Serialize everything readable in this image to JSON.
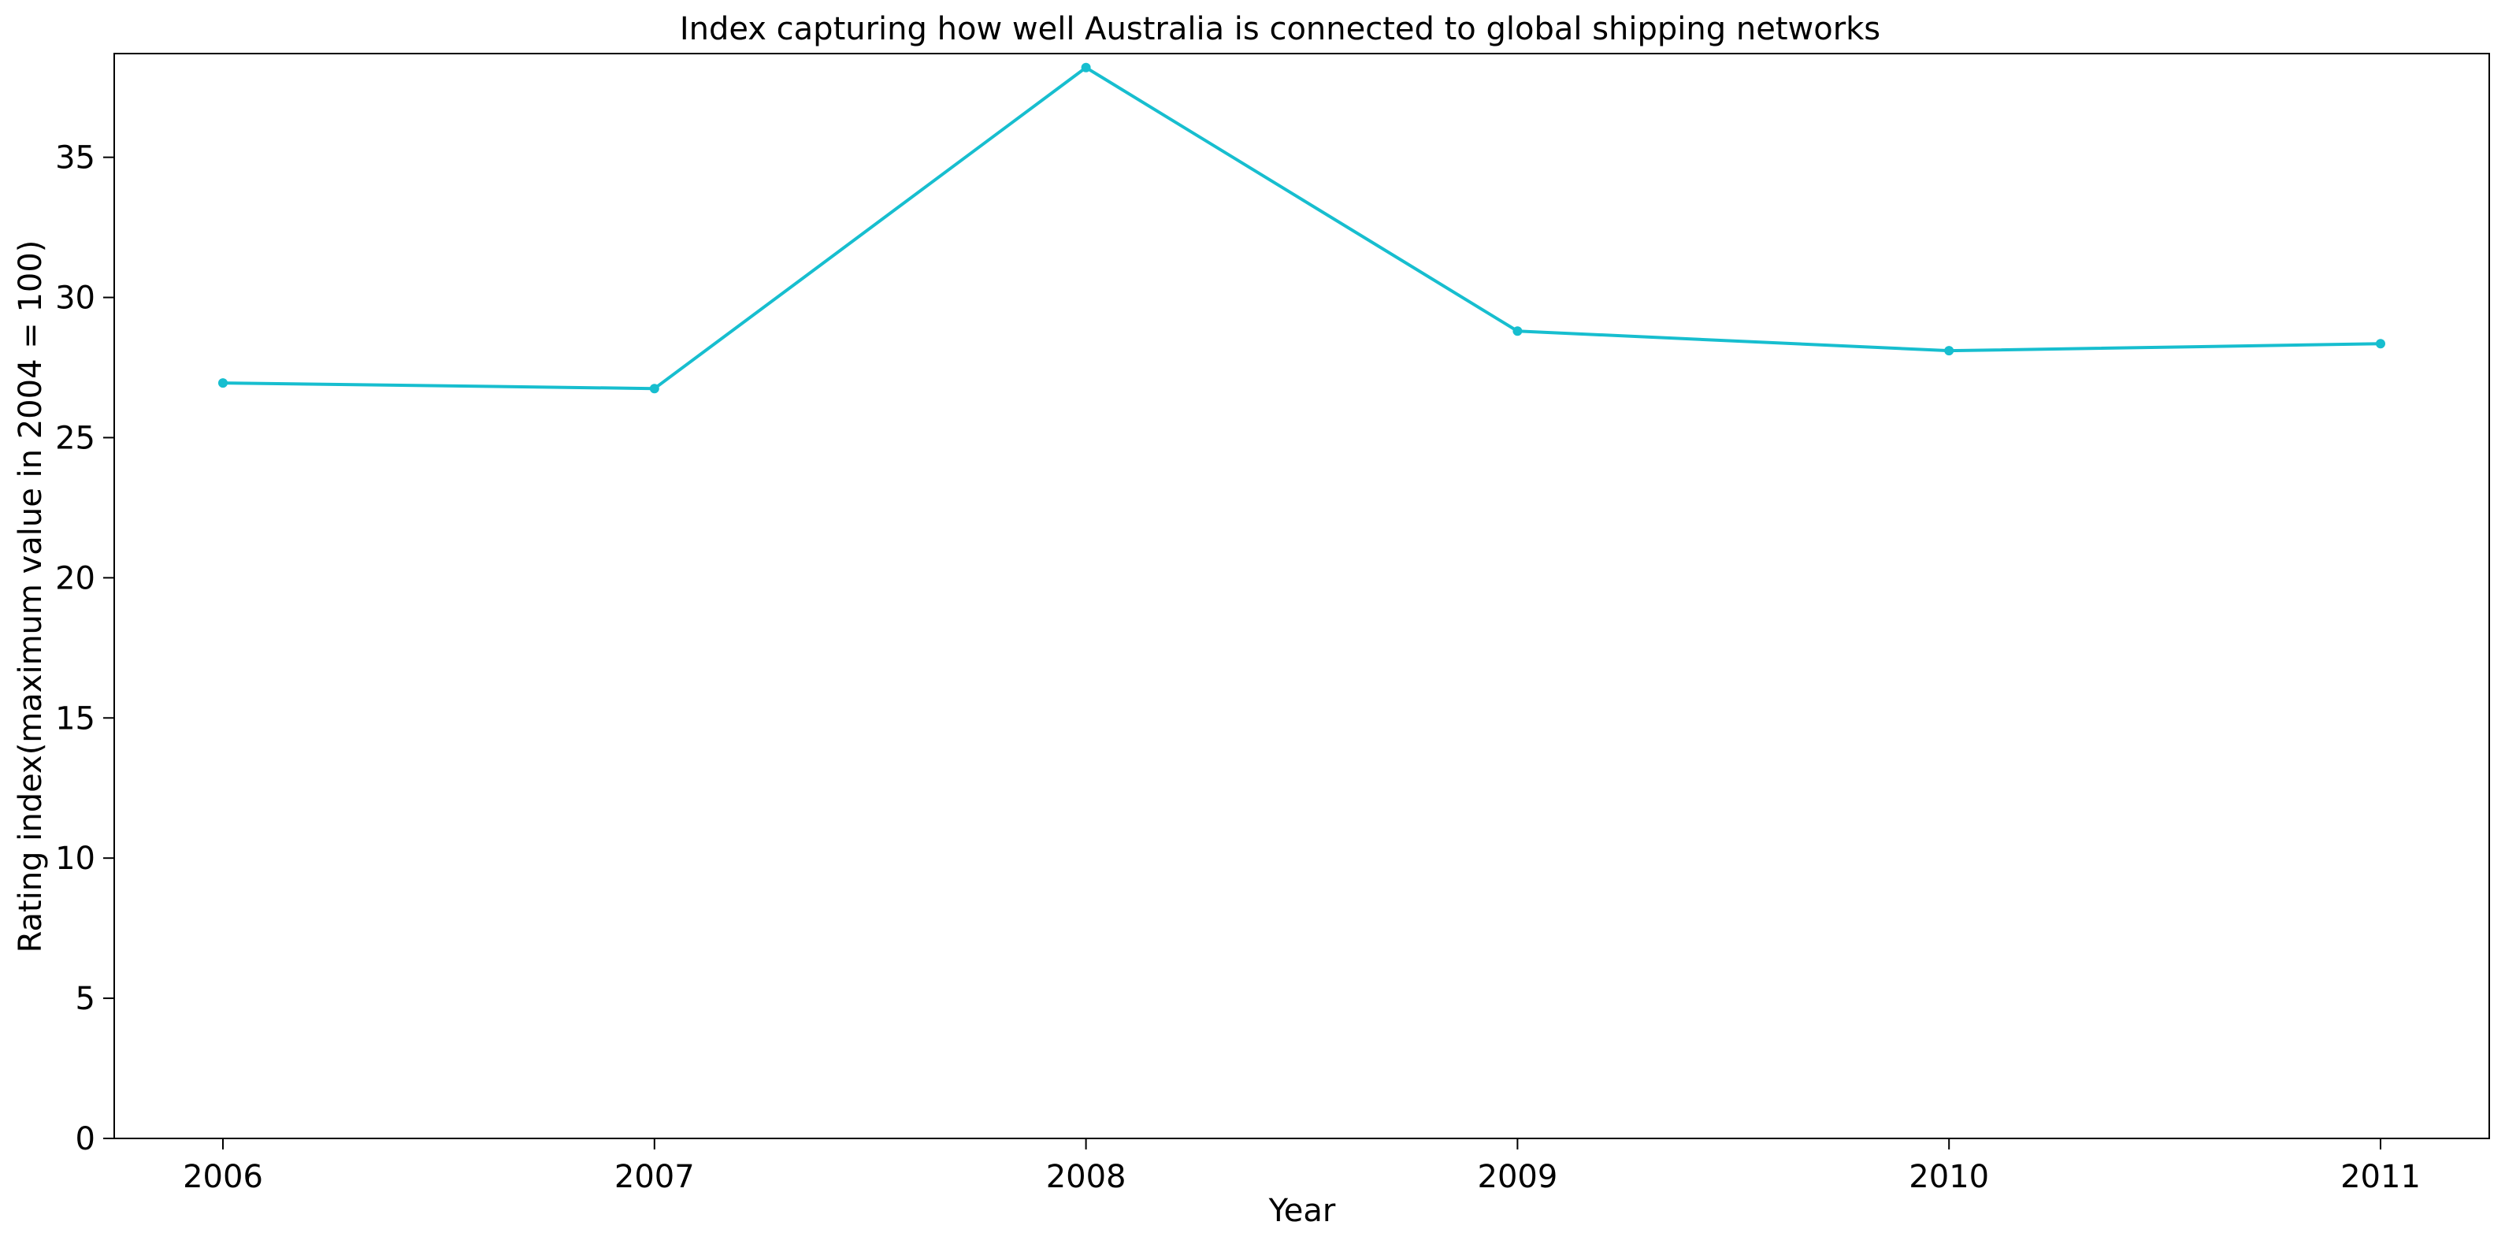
{
  "chart_data": {
    "type": "line",
    "title": "Index capturing how well Australia is connected to global shipping networks",
    "xlabel": "Year",
    "ylabel": "Rating index(maximum value in 2004 = 100)",
    "categories": [
      "2006",
      "2007",
      "2008",
      "2009",
      "2010",
      "2011"
    ],
    "series": [
      {
        "values": [
          26.95,
          26.75,
          38.2,
          28.8,
          28.1,
          28.35
        ]
      }
    ],
    "ylim": [
      0,
      38.7
    ],
    "yticks": [
      "0",
      "5",
      "10",
      "15",
      "20",
      "25",
      "30",
      "35"
    ],
    "grid": false,
    "line_color": "#17becf",
    "marker": "dot"
  }
}
